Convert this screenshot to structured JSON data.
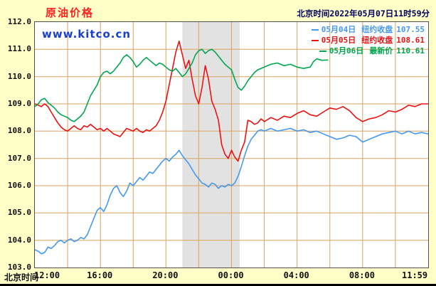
{
  "title": "原油价格",
  "header_datetime": "北京时间2022年05月07日11时59分",
  "watermark": "www.kitco.cn",
  "footer_label": "北京时间",
  "colors": {
    "background": "#FFFFC8",
    "plot_background": "#FFFFFF",
    "grid": "#DBA360",
    "band": "#E2E2E2",
    "title": "#FF2020",
    "watermark": "#1A3FCC",
    "blue_series": "#4499EE",
    "red_series": "#EE1111",
    "green_series": "#00A651"
  },
  "legend": [
    {
      "date": "05月04日",
      "desc": "纽约收盘",
      "value": "107.55",
      "color": "#4499EE"
    },
    {
      "date": "05月05日",
      "desc": "纽约收盘",
      "value": "108.61",
      "color": "#EE1111"
    },
    {
      "date": "05月06日",
      "desc": "最新价",
      "value": "110.61",
      "color": "#00A651"
    }
  ],
  "chart_data": {
    "type": "line",
    "title": "原油价格",
    "xlabel": "北京时间",
    "ylabel": "",
    "x_axis": {
      "range_hours": [
        0,
        24
      ],
      "grid_step_hours": 2,
      "ticks": [
        {
          "label": "12:00",
          "hour": 0
        },
        {
          "label": "16:00",
          "hour": 4
        },
        {
          "label": "20:00",
          "hour": 8
        },
        {
          "label": "00:00",
          "hour": 12
        },
        {
          "label": "04:00",
          "hour": 16
        },
        {
          "label": "08:00",
          "hour": 20
        },
        {
          "label": "11:59",
          "hour": 24
        }
      ]
    },
    "y_axis": {
      "range": [
        103.0,
        112.0
      ],
      "grid_step": 1.0,
      "ticks": [
        "112.0",
        "111.0",
        "110.0",
        "109.0",
        "108.0",
        "107.0",
        "106.0",
        "105.0",
        "104.0",
        "103.0"
      ]
    },
    "shaded_band_hours": [
      9.0,
      12.5
    ],
    "legend_position": "top-right",
    "grid": true,
    "series": [
      {
        "name": "05月04日",
        "close_label": "纽约收盘",
        "close_value": 107.55,
        "color": "#4499EE",
        "points": [
          [
            0,
            103.65
          ],
          [
            0.2,
            103.6
          ],
          [
            0.4,
            103.5
          ],
          [
            0.6,
            103.55
          ],
          [
            0.8,
            103.75
          ],
          [
            1,
            103.7
          ],
          [
            1.2,
            103.8
          ],
          [
            1.4,
            103.95
          ],
          [
            1.6,
            104
          ],
          [
            1.8,
            103.9
          ],
          [
            2,
            104
          ],
          [
            2.2,
            104.05
          ],
          [
            2.4,
            103.95
          ],
          [
            2.6,
            104
          ],
          [
            2.8,
            104.1
          ],
          [
            3,
            104.05
          ],
          [
            3.2,
            104.2
          ],
          [
            3.4,
            104.5
          ],
          [
            3.6,
            104.8
          ],
          [
            3.8,
            105.1
          ],
          [
            4,
            105.2
          ],
          [
            4.2,
            105.05
          ],
          [
            4.4,
            105.3
          ],
          [
            4.6,
            105.65
          ],
          [
            4.8,
            105.9
          ],
          [
            5,
            106
          ],
          [
            5.2,
            105.75
          ],
          [
            5.4,
            105.6
          ],
          [
            5.6,
            105.8
          ],
          [
            5.8,
            106.1
          ],
          [
            6,
            106
          ],
          [
            6.2,
            106.15
          ],
          [
            6.4,
            106.3
          ],
          [
            6.6,
            106.2
          ],
          [
            6.8,
            106.35
          ],
          [
            7,
            106.5
          ],
          [
            7.2,
            106.45
          ],
          [
            7.4,
            106.6
          ],
          [
            7.6,
            106.75
          ],
          [
            7.8,
            106.9
          ],
          [
            8,
            107
          ],
          [
            8.2,
            106.9
          ],
          [
            8.4,
            107.05
          ],
          [
            8.6,
            107.15
          ],
          [
            8.8,
            107.3
          ],
          [
            9,
            107.1
          ],
          [
            9.2,
            106.95
          ],
          [
            9.4,
            106.8
          ],
          [
            9.6,
            106.6
          ],
          [
            9.8,
            106.4
          ],
          [
            10,
            106.25
          ],
          [
            10.2,
            106.1
          ],
          [
            10.4,
            106.05
          ],
          [
            10.6,
            105.95
          ],
          [
            10.8,
            106.1
          ],
          [
            11,
            106.05
          ],
          [
            11.2,
            105.9
          ],
          [
            11.4,
            106
          ],
          [
            11.6,
            105.95
          ],
          [
            11.8,
            106.05
          ],
          [
            12,
            106
          ],
          [
            12.2,
            106.1
          ],
          [
            12.4,
            106.35
          ],
          [
            12.6,
            106.7
          ],
          [
            12.8,
            107.1
          ],
          [
            13,
            107.45
          ],
          [
            13.2,
            107.7
          ],
          [
            13.4,
            107.85
          ],
          [
            13.6,
            108
          ],
          [
            13.8,
            108.05
          ],
          [
            14,
            108
          ],
          [
            14.4,
            108.1
          ],
          [
            14.8,
            108
          ],
          [
            15.2,
            108.05
          ],
          [
            15.6,
            108.1
          ],
          [
            16,
            108
          ],
          [
            16.4,
            108.05
          ],
          [
            16.8,
            107.95
          ],
          [
            17.2,
            108
          ],
          [
            17.6,
            107.9
          ],
          [
            18,
            107.8
          ],
          [
            18.4,
            107.7
          ],
          [
            18.8,
            107.75
          ],
          [
            19.2,
            107.85
          ],
          [
            19.6,
            107.8
          ],
          [
            20,
            107.6
          ],
          [
            20.4,
            107.7
          ],
          [
            20.8,
            107.8
          ],
          [
            21.2,
            107.9
          ],
          [
            21.6,
            107.95
          ],
          [
            22,
            108
          ],
          [
            22.4,
            107.9
          ],
          [
            22.8,
            108
          ],
          [
            23.2,
            107.9
          ],
          [
            23.6,
            107.95
          ],
          [
            24,
            107.9
          ]
        ]
      },
      {
        "name": "05月05日",
        "close_label": "纽约收盘",
        "close_value": 108.61,
        "color": "#EE1111",
        "points": [
          [
            0,
            109
          ],
          [
            0.2,
            108.95
          ],
          [
            0.4,
            108.9
          ],
          [
            0.6,
            109
          ],
          [
            0.8,
            108.9
          ],
          [
            1,
            108.7
          ],
          [
            1.2,
            108.5
          ],
          [
            1.4,
            108.3
          ],
          [
            1.6,
            108.15
          ],
          [
            1.8,
            108.05
          ],
          [
            2,
            108
          ],
          [
            2.2,
            108.1
          ],
          [
            2.4,
            108.2
          ],
          [
            2.6,
            108.1
          ],
          [
            2.8,
            108.05
          ],
          [
            3,
            108.2
          ],
          [
            3.2,
            108.15
          ],
          [
            3.4,
            108.25
          ],
          [
            3.6,
            108.15
          ],
          [
            3.8,
            108.05
          ],
          [
            4,
            108.1
          ],
          [
            4.2,
            108
          ],
          [
            4.4,
            108.1
          ],
          [
            4.6,
            108
          ],
          [
            4.8,
            107.9
          ],
          [
            5,
            107.85
          ],
          [
            5.2,
            107.8
          ],
          [
            5.4,
            107.95
          ],
          [
            5.6,
            108.1
          ],
          [
            5.8,
            108.05
          ],
          [
            6,
            108
          ],
          [
            6.2,
            108.1
          ],
          [
            6.4,
            108
          ],
          [
            6.6,
            107.95
          ],
          [
            6.8,
            108.05
          ],
          [
            7,
            108
          ],
          [
            7.2,
            108.1
          ],
          [
            7.4,
            108.2
          ],
          [
            7.6,
            108.4
          ],
          [
            7.8,
            108.7
          ],
          [
            8,
            109.1
          ],
          [
            8.2,
            109.7
          ],
          [
            8.4,
            110.3
          ],
          [
            8.6,
            110.9
          ],
          [
            8.8,
            111.3
          ],
          [
            9,
            110.8
          ],
          [
            9.2,
            110.3
          ],
          [
            9.4,
            110.6
          ],
          [
            9.6,
            109.9
          ],
          [
            9.8,
            109.3
          ],
          [
            10,
            109
          ],
          [
            10.2,
            109.6
          ],
          [
            10.4,
            110.4
          ],
          [
            10.6,
            109.9
          ],
          [
            10.8,
            109.1
          ],
          [
            11,
            108.8
          ],
          [
            11.2,
            108.4
          ],
          [
            11.4,
            107.5
          ],
          [
            11.6,
            107.15
          ],
          [
            11.8,
            107
          ],
          [
            12,
            107.3
          ],
          [
            12.2,
            107.05
          ],
          [
            12.4,
            106.9
          ],
          [
            12.6,
            107.3
          ],
          [
            12.8,
            107.6
          ],
          [
            13,
            108.4
          ],
          [
            13.2,
            108.35
          ],
          [
            13.4,
            108.25
          ],
          [
            13.6,
            108.3
          ],
          [
            13.8,
            108.45
          ],
          [
            14,
            108.35
          ],
          [
            14.4,
            108.5
          ],
          [
            14.8,
            108.4
          ],
          [
            15.2,
            108.55
          ],
          [
            15.6,
            108.5
          ],
          [
            16,
            108.65
          ],
          [
            16.4,
            108.75
          ],
          [
            16.8,
            108.6
          ],
          [
            17.2,
            108.55
          ],
          [
            17.6,
            108.7
          ],
          [
            18,
            108.85
          ],
          [
            18.4,
            108.8
          ],
          [
            18.8,
            108.9
          ],
          [
            19.2,
            108.75
          ],
          [
            19.6,
            108.5
          ],
          [
            20,
            108.35
          ],
          [
            20.4,
            108.45
          ],
          [
            20.8,
            108.5
          ],
          [
            21.2,
            108.6
          ],
          [
            21.6,
            108.75
          ],
          [
            22,
            108.7
          ],
          [
            22.4,
            108.8
          ],
          [
            22.8,
            108.95
          ],
          [
            23.2,
            108.9
          ],
          [
            23.6,
            109
          ],
          [
            24,
            109
          ]
        ]
      },
      {
        "name": "05月06日",
        "close_label": "最新价",
        "close_value": 110.61,
        "color": "#00A651",
        "points": [
          [
            0,
            108.9
          ],
          [
            0.2,
            109
          ],
          [
            0.4,
            109.15
          ],
          [
            0.6,
            109.2
          ],
          [
            0.8,
            109.05
          ],
          [
            1,
            108.95
          ],
          [
            1.2,
            108.85
          ],
          [
            1.4,
            108.7
          ],
          [
            1.6,
            108.6
          ],
          [
            1.8,
            108.55
          ],
          [
            2,
            108.5
          ],
          [
            2.2,
            108.4
          ],
          [
            2.4,
            108.35
          ],
          [
            2.6,
            108.45
          ],
          [
            2.8,
            108.55
          ],
          [
            3,
            108.7
          ],
          [
            3.2,
            109
          ],
          [
            3.4,
            109.3
          ],
          [
            3.6,
            109.5
          ],
          [
            3.8,
            109.7
          ],
          [
            4,
            110
          ],
          [
            4.2,
            110.15
          ],
          [
            4.4,
            110.2
          ],
          [
            4.6,
            110.1
          ],
          [
            4.8,
            110.2
          ],
          [
            5,
            110.35
          ],
          [
            5.2,
            110.5
          ],
          [
            5.4,
            110.7
          ],
          [
            5.6,
            110.8
          ],
          [
            5.8,
            110.7
          ],
          [
            6,
            110.55
          ],
          [
            6.2,
            110.35
          ],
          [
            6.4,
            110.45
          ],
          [
            6.6,
            110.6
          ],
          [
            6.8,
            110.7
          ],
          [
            7,
            110.6
          ],
          [
            7.2,
            110.5
          ],
          [
            7.4,
            110.4
          ],
          [
            7.6,
            110.5
          ],
          [
            7.8,
            110.45
          ],
          [
            8,
            110.35
          ],
          [
            8.2,
            110.25
          ],
          [
            8.4,
            110.2
          ],
          [
            8.6,
            110.3
          ],
          [
            8.8,
            110.15
          ],
          [
            9,
            110
          ],
          [
            9.2,
            110.1
          ],
          [
            9.4,
            110.3
          ],
          [
            9.6,
            110.5
          ],
          [
            9.8,
            110.8
          ],
          [
            10,
            110.95
          ],
          [
            10.2,
            111
          ],
          [
            10.4,
            110.85
          ],
          [
            10.6,
            110.95
          ],
          [
            10.8,
            111
          ],
          [
            11,
            110.9
          ],
          [
            11.2,
            110.75
          ],
          [
            11.4,
            110.6
          ],
          [
            11.6,
            110.45
          ],
          [
            11.8,
            110.35
          ],
          [
            12,
            110.25
          ],
          [
            12.2,
            109.9
          ],
          [
            12.4,
            109.6
          ],
          [
            12.6,
            109.5
          ],
          [
            12.8,
            109.65
          ],
          [
            13,
            109.85
          ],
          [
            13.2,
            110
          ],
          [
            13.4,
            110.15
          ],
          [
            13.6,
            110.25
          ],
          [
            13.8,
            110.3
          ],
          [
            14,
            110.35
          ],
          [
            14.4,
            110.45
          ],
          [
            14.8,
            110.5
          ],
          [
            15.2,
            110.4
          ],
          [
            15.6,
            110.45
          ],
          [
            16,
            110.35
          ],
          [
            16.4,
            110.3
          ],
          [
            16.8,
            110.35
          ],
          [
            17,
            110.55
          ],
          [
            17.2,
            110.65
          ],
          [
            17.5,
            110.6
          ],
          [
            17.9,
            110.61
          ]
        ]
      }
    ]
  }
}
